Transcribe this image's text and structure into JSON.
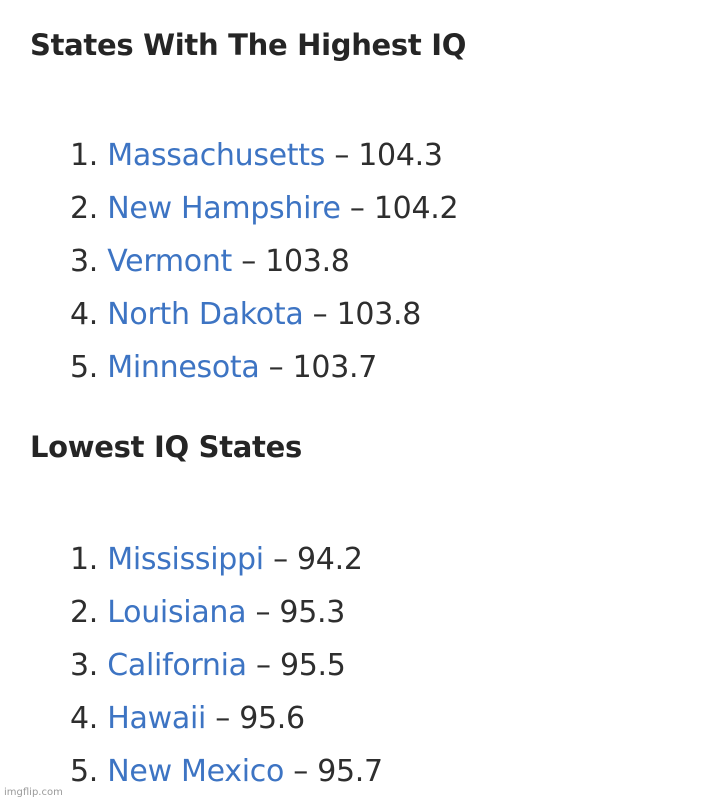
{
  "separator": "–",
  "sections": [
    {
      "title": "States With The Highest IQ",
      "items": [
        {
          "rank": "1.",
          "name": "Massachusetts",
          "value": "104.3"
        },
        {
          "rank": "2.",
          "name": "New Hampshire",
          "value": "104.2"
        },
        {
          "rank": "3.",
          "name": "Vermont",
          "value": "103.8"
        },
        {
          "rank": "4.",
          "name": "North Dakota",
          "value": "103.8"
        },
        {
          "rank": "5.",
          "name": "Minnesota",
          "value": "103.7"
        }
      ]
    },
    {
      "title": "Lowest IQ States",
      "items": [
        {
          "rank": "1.",
          "name": "Mississippi",
          "value": "94.2"
        },
        {
          "rank": "2.",
          "name": "Louisiana",
          "value": "95.3"
        },
        {
          "rank": "3.",
          "name": "California",
          "value": "95.5"
        },
        {
          "rank": "4.",
          "name": "Hawaii",
          "value": "95.6"
        },
        {
          "rank": "5.",
          "name": "New Mexico",
          "value": "95.7"
        }
      ]
    }
  ],
  "watermark": "imgflip.com"
}
